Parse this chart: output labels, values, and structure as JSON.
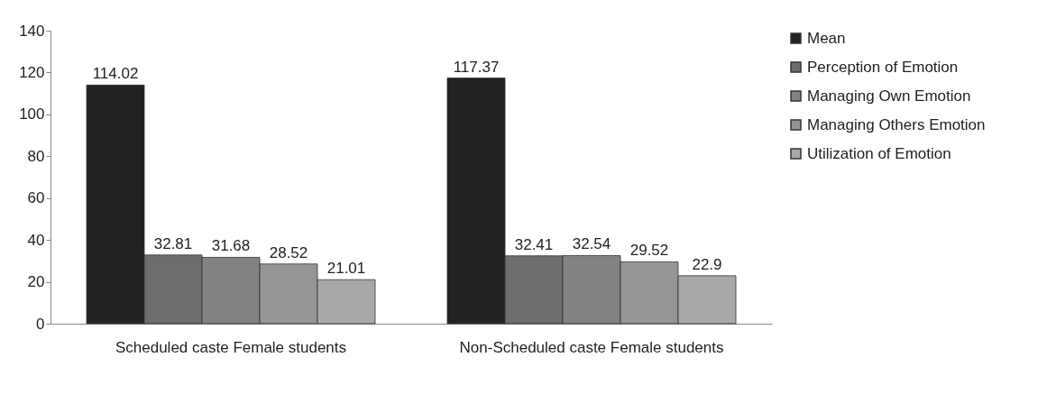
{
  "chart_data": {
    "type": "bar",
    "categories": [
      "Scheduled caste Female students",
      "Non-Scheduled caste Female students"
    ],
    "series": [
      {
        "name": "Mean",
        "color": "#222222",
        "values": [
          114.02,
          117.37
        ]
      },
      {
        "name": "Perception of Emotion",
        "color": "#6e6e6e",
        "values": [
          32.81,
          32.41
        ]
      },
      {
        "name": "Managing Own Emotion",
        "color": "#828282",
        "values": [
          31.68,
          32.54
        ]
      },
      {
        "name": "Managing Others Emotion",
        "color": "#959595",
        "values": [
          28.52,
          29.52
        ]
      },
      {
        "name": "Utilization of Emotion",
        "color": "#a8a8a8",
        "values": [
          21.01,
          22.9
        ]
      }
    ],
    "ylim": [
      0,
      140
    ],
    "yticks": [
      0,
      20,
      40,
      60,
      80,
      100,
      120,
      140
    ],
    "data_labels": true,
    "grid": false,
    "legend": "right"
  }
}
